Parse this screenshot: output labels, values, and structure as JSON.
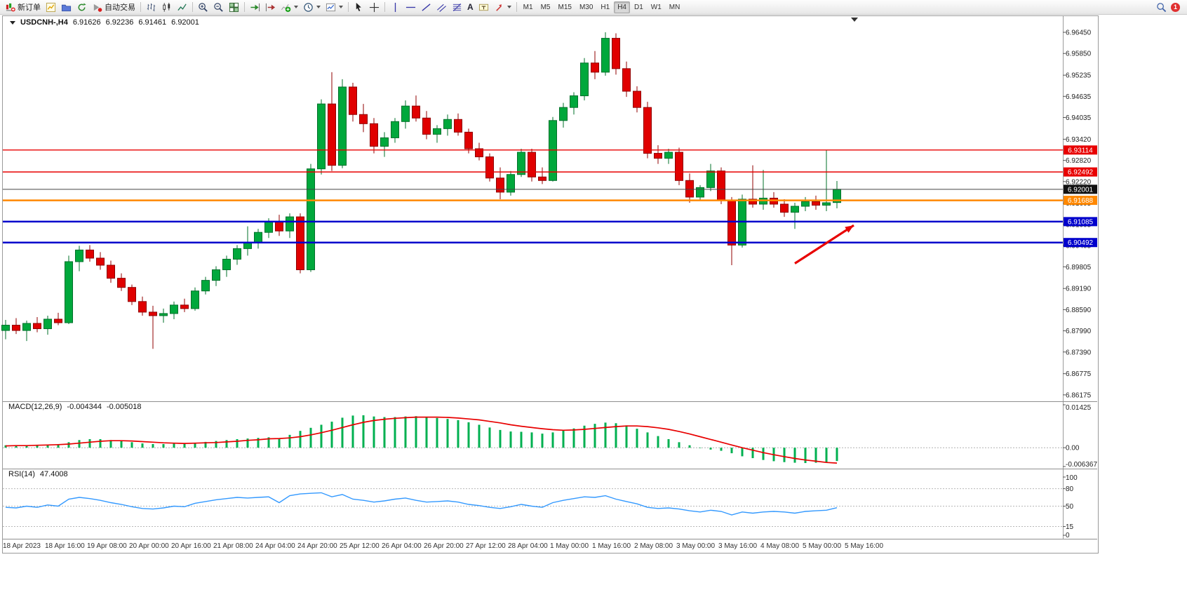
{
  "toolbar": {
    "new_order": "新订单",
    "autotrading": "自动交易",
    "timeframes": [
      "M1",
      "M5",
      "M15",
      "M30",
      "H1",
      "H4",
      "D1",
      "W1",
      "MN"
    ],
    "active_timeframe": "H4",
    "notification_count": "1",
    "icons": [
      "new-order",
      "new-chart",
      "profiles",
      "refresh",
      "autotrading",
      "bars-chart",
      "candlestick-chart",
      "line-chart",
      "zoom-in",
      "zoom-out",
      "tile-windows",
      "auto-scroll",
      "chart-shift",
      "indicators",
      "periods",
      "templates",
      "cursor",
      "crosshair",
      "vertical-line",
      "horizontal-line",
      "trendline",
      "equidistant-channel",
      "fibonacci",
      "text",
      "text-label",
      "arrows",
      "search",
      "notification"
    ]
  },
  "chart_header": {
    "symbol": "USDCNH-,H4",
    "open": "6.91626",
    "high": "6.92236",
    "low": "6.91461",
    "close": "6.92001"
  },
  "indicators": {
    "macd": {
      "label": "MACD(12,26,9)",
      "main_value": "-0.004344",
      "signal_value": "-0.005018"
    },
    "rsi": {
      "label": "RSI(14)",
      "value": "47.4008"
    }
  },
  "chart_data": {
    "type": "candlestick",
    "symbol": "USDCNH",
    "timeframe": "H4",
    "ylim": [
      6.8603,
      6.9657
    ],
    "price_axis_ticks": [
      "6.96450",
      "6.95850",
      "6.95235",
      "6.94635",
      "6.94035",
      "6.93420",
      "6.92820",
      "6.92220",
      "6.91605",
      "6.91005",
      "6.90405",
      "6.89805",
      "6.89190",
      "6.88590",
      "6.87990",
      "6.87390",
      "6.86775",
      "6.86175"
    ],
    "time_axis": [
      "18 Apr 2023",
      "18 Apr 16:00",
      "19 Apr 08:00",
      "20 Apr 00:00",
      "20 Apr 16:00",
      "21 Apr 08:00",
      "24 Apr 04:00",
      "24 Apr 20:00",
      "25 Apr 12:00",
      "26 Apr 04:00",
      "26 Apr 20:00",
      "27 Apr 12:00",
      "28 Apr 04:00",
      "1 May 00:00",
      "1 May 16:00",
      "2 May 08:00",
      "3 May 00:00",
      "3 May 16:00",
      "4 May 08:00",
      "5 May 00:00",
      "5 May 16:00"
    ],
    "candles": [
      [
        6.88,
        6.883,
        6.8775,
        6.8815
      ],
      [
        6.8815,
        6.8835,
        6.879,
        6.88
      ],
      [
        6.88,
        6.8828,
        6.877,
        6.882
      ],
      [
        6.882,
        6.8838,
        6.8795,
        6.8805
      ],
      [
        6.8805,
        6.8842,
        6.8788,
        6.8832
      ],
      [
        6.8832,
        6.885,
        6.8815,
        6.8822
      ],
      [
        6.8822,
        6.9012,
        6.8818,
        6.8995
      ],
      [
        6.8995,
        6.904,
        6.8968,
        6.9028
      ],
      [
        6.9028,
        6.9042,
        6.8995,
        6.9005
      ],
      [
        6.9005,
        6.9022,
        6.8972,
        6.8985
      ],
      [
        6.8985,
        6.8998,
        6.8935,
        6.8948
      ],
      [
        6.8948,
        6.8962,
        6.8912,
        6.8922
      ],
      [
        6.8922,
        6.893,
        6.8872,
        6.8882
      ],
      [
        6.8882,
        6.8896,
        6.8842,
        6.8852
      ],
      [
        6.8852,
        6.887,
        6.8748,
        6.8842
      ],
      [
        6.8842,
        6.8862,
        6.8822,
        6.8848
      ],
      [
        6.8848,
        6.8882,
        6.8832,
        6.8872
      ],
      [
        6.8872,
        6.889,
        6.8852,
        6.8862
      ],
      [
        6.8862,
        6.8922,
        6.8856,
        6.8912
      ],
      [
        6.8912,
        6.8952,
        6.8902,
        6.8942
      ],
      [
        6.8942,
        6.8982,
        6.8926,
        6.8972
      ],
      [
        6.8972,
        6.9012,
        6.8952,
        6.9002
      ],
      [
        6.9002,
        6.9042,
        6.8986,
        6.9032
      ],
      [
        6.9032,
        6.9095,
        6.9012,
        6.9048
      ],
      [
        6.9048,
        6.9088,
        6.9032,
        6.9078
      ],
      [
        6.9078,
        6.9118,
        6.9062,
        6.9108
      ],
      [
        6.9108,
        6.9128,
        6.9068,
        6.9082
      ],
      [
        6.9082,
        6.9132,
        6.9062,
        6.9122
      ],
      [
        6.9122,
        6.9132,
        6.8962,
        6.8972
      ],
      [
        6.8972,
        6.9272,
        6.8966,
        6.9258
      ],
      [
        6.9258,
        6.9455,
        6.9242,
        6.9442
      ],
      [
        6.9442,
        6.9532,
        6.9252,
        6.9268
      ],
      [
        6.9268,
        6.9512,
        6.926,
        6.949
      ],
      [
        6.949,
        6.9502,
        6.9392,
        6.9412
      ],
      [
        6.9412,
        6.9442,
        6.9362,
        6.9386
      ],
      [
        6.9386,
        6.9402,
        6.9302,
        6.9322
      ],
      [
        6.9322,
        6.9362,
        6.9292,
        6.9346
      ],
      [
        6.9346,
        6.9402,
        6.9332,
        6.9392
      ],
      [
        6.9392,
        6.9452,
        6.9372,
        6.9436
      ],
      [
        6.9436,
        6.9466,
        6.9392,
        6.9402
      ],
      [
        6.9402,
        6.9422,
        6.9342,
        6.9356
      ],
      [
        6.9356,
        6.9382,
        6.9332,
        6.9372
      ],
      [
        6.9372,
        6.9412,
        6.9352,
        6.9398
      ],
      [
        6.9398,
        6.9415,
        6.9352,
        6.9362
      ],
      [
        6.9362,
        6.9372,
        6.9302,
        6.9315
      ],
      [
        6.9315,
        6.9332,
        6.9282,
        6.9292
      ],
      [
        6.9292,
        6.9302,
        6.9222,
        6.9232
      ],
      [
        6.9232,
        6.9262,
        6.9172,
        6.9192
      ],
      [
        6.9192,
        6.9252,
        6.9182,
        6.9242
      ],
      [
        6.9242,
        6.9315,
        6.9235,
        6.9305
      ],
      [
        6.9305,
        6.9315,
        6.9222,
        6.9235
      ],
      [
        6.9235,
        6.9262,
        6.9215,
        6.9225
      ],
      [
        6.9225,
        6.9405,
        6.9222,
        6.9395
      ],
      [
        6.9395,
        6.9445,
        6.9375,
        6.9432
      ],
      [
        6.9432,
        6.9475,
        6.9412,
        6.9465
      ],
      [
        6.9465,
        6.9572,
        6.9452,
        6.9558
      ],
      [
        6.9558,
        6.9592,
        6.9512,
        6.9532
      ],
      [
        6.9532,
        6.9645,
        6.9522,
        6.9628
      ],
      [
        6.9628,
        6.9642,
        6.9525,
        6.9542
      ],
      [
        6.9542,
        6.9562,
        6.9462,
        6.9478
      ],
      [
        6.9478,
        6.9492,
        6.9418,
        6.9432
      ],
      [
        6.9432,
        6.9448,
        6.9288,
        6.9302
      ],
      [
        6.9302,
        6.9325,
        6.9272,
        6.9288
      ],
      [
        6.9288,
        6.9315,
        6.9272,
        6.9305
      ],
      [
        6.9305,
        6.9318,
        6.9212,
        6.9225
      ],
      [
        6.9225,
        6.9245,
        6.9162,
        6.9178
      ],
      [
        6.9178,
        6.9212,
        6.9168,
        6.9205
      ],
      [
        6.9205,
        6.9272,
        6.9195,
        6.9252
      ],
      [
        6.9252,
        6.9262,
        6.9158,
        6.9168
      ],
      [
        6.9168,
        6.9178,
        6.8985,
        6.9042
      ],
      [
        6.9042,
        6.9185,
        6.9035,
        6.9172
      ],
      [
        6.9172,
        6.9268,
        6.9148,
        6.9158
      ],
      [
        6.9158,
        6.9255,
        6.9142,
        6.9175
      ],
      [
        6.9175,
        6.9192,
        6.9148,
        6.9158
      ],
      [
        6.9158,
        6.9172,
        6.9122,
        6.9135
      ],
      [
        6.9135,
        6.9162,
        6.9088,
        6.9152
      ],
      [
        6.9152,
        6.9178,
        6.9138,
        6.9165
      ],
      [
        6.9165,
        6.9182,
        6.9142,
        6.9155
      ],
      [
        6.9155,
        6.9312,
        6.9138,
        6.9162
      ],
      [
        6.91626,
        6.92236,
        6.91461,
        6.92001
      ]
    ],
    "h_lines": [
      {
        "label": "6.93114",
        "price": 6.93114,
        "color": "#e80000",
        "width": 1.4,
        "label_bg": "#e80000"
      },
      {
        "label": "6.92492",
        "price": 6.92492,
        "color": "#e80000",
        "width": 1.4,
        "label_bg": "#e80000"
      },
      {
        "label": "6.92001",
        "price": 6.92001,
        "color": "#444444",
        "width": 1,
        "label_bg": "#111111"
      },
      {
        "label": "6.91688",
        "price": 6.91688,
        "color": "#ff8800",
        "width": 2.5,
        "label_bg": "#ff8800"
      },
      {
        "label": "6.91085",
        "price": 6.91085,
        "color": "#0000cc",
        "width": 2.5,
        "label_bg": "#0000cc"
      },
      {
        "label": "6.90492",
        "price": 6.90492,
        "color": "#0000cc",
        "width": 2.5,
        "label_bg": "#0000cc"
      }
    ],
    "arrow": {
      "from_bar": 75,
      "from_price": 6.899,
      "to_bar": 80.6,
      "to_price": 6.9098,
      "color": "#e80000"
    },
    "macd": {
      "max": 0.01425,
      "min": -0.006367,
      "axis_labels": [
        "0.01425",
        "0.00",
        "-0.006367"
      ],
      "colors": {
        "histogram": "#00b050",
        "signal": "#e80000"
      },
      "histogram": [
        0.0008,
        0.0007,
        0.0008,
        0.0009,
        0.001,
        0.0011,
        0.0018,
        0.0025,
        0.0028,
        0.0028,
        0.0025,
        0.0022,
        0.0018,
        0.0014,
        0.0012,
        0.0012,
        0.0013,
        0.0014,
        0.0016,
        0.0019,
        0.0022,
        0.0025,
        0.0028,
        0.003,
        0.0032,
        0.0034,
        0.003,
        0.0042,
        0.0055,
        0.0065,
        0.0075,
        0.0085,
        0.0098,
        0.0105,
        0.0106,
        0.0102,
        0.01,
        0.01,
        0.0102,
        0.0103,
        0.01,
        0.0097,
        0.0094,
        0.009,
        0.0083,
        0.0075,
        0.0066,
        0.0058,
        0.0053,
        0.0052,
        0.005,
        0.0046,
        0.005,
        0.0056,
        0.0063,
        0.0072,
        0.0078,
        0.0082,
        0.008,
        0.0073,
        0.0062,
        0.005,
        0.0038,
        0.0028,
        0.0018,
        0.0008,
        0.0,
        -0.0006,
        -0.001,
        -0.0018,
        -0.0028,
        -0.0034,
        -0.004,
        -0.0044,
        -0.0047,
        -0.0049,
        -0.005,
        -0.0049,
        -0.0047,
        -0.004344
      ],
      "signal": [
        0.0006,
        0.0007,
        0.0007,
        0.0008,
        0.0009,
        0.001,
        0.0012,
        0.0015,
        0.0018,
        0.0021,
        0.0023,
        0.0023,
        0.0022,
        0.002,
        0.0018,
        0.0016,
        0.0015,
        0.0014,
        0.0015,
        0.0016,
        0.0017,
        0.0019,
        0.0021,
        0.0024,
        0.0026,
        0.0029,
        0.003,
        0.0032,
        0.0036,
        0.0042,
        0.0049,
        0.0057,
        0.0066,
        0.0075,
        0.0083,
        0.0089,
        0.0093,
        0.0096,
        0.0098,
        0.01,
        0.01,
        0.01,
        0.0099,
        0.0097,
        0.0094,
        0.0091,
        0.0086,
        0.0081,
        0.0075,
        0.007,
        0.0066,
        0.0062,
        0.0059,
        0.0057,
        0.0058,
        0.006,
        0.0063,
        0.0066,
        0.0069,
        0.0071,
        0.0071,
        0.0069,
        0.0065,
        0.006,
        0.0053,
        0.0045,
        0.0036,
        0.0027,
        0.0018,
        0.0009,
        0.0,
        -0.0008,
        -0.0016,
        -0.0023,
        -0.0029,
        -0.0035,
        -0.004,
        -0.0044,
        -0.0048,
        -0.005018
      ]
    },
    "rsi": {
      "color": "#3399ff",
      "levels": [
        80,
        50,
        15
      ],
      "axis_labels": [
        "100",
        "80",
        "50",
        "15",
        "0"
      ],
      "axis_values": [
        100,
        80,
        50,
        15,
        0
      ],
      "values": [
        48,
        47,
        50,
        48,
        52,
        50,
        62,
        65,
        63,
        60,
        56,
        53,
        49,
        46,
        45,
        47,
        50,
        49,
        55,
        58,
        61,
        63,
        65,
        64,
        65,
        66,
        56,
        68,
        71,
        72,
        73,
        66,
        70,
        62,
        60,
        57,
        59,
        62,
        64,
        60,
        57,
        58,
        59,
        57,
        53,
        51,
        48,
        46,
        49,
        53,
        50,
        48,
        56,
        60,
        63,
        66,
        65,
        68,
        62,
        58,
        54,
        48,
        46,
        47,
        45,
        42,
        40,
        43,
        41,
        35,
        40,
        38,
        40,
        41,
        40,
        38,
        41,
        42,
        43,
        47.4
      ]
    },
    "colors": {
      "bull": "#00a83c",
      "bull_border": "#00702a",
      "bear": "#e00000",
      "bear_border": "#900000"
    }
  }
}
